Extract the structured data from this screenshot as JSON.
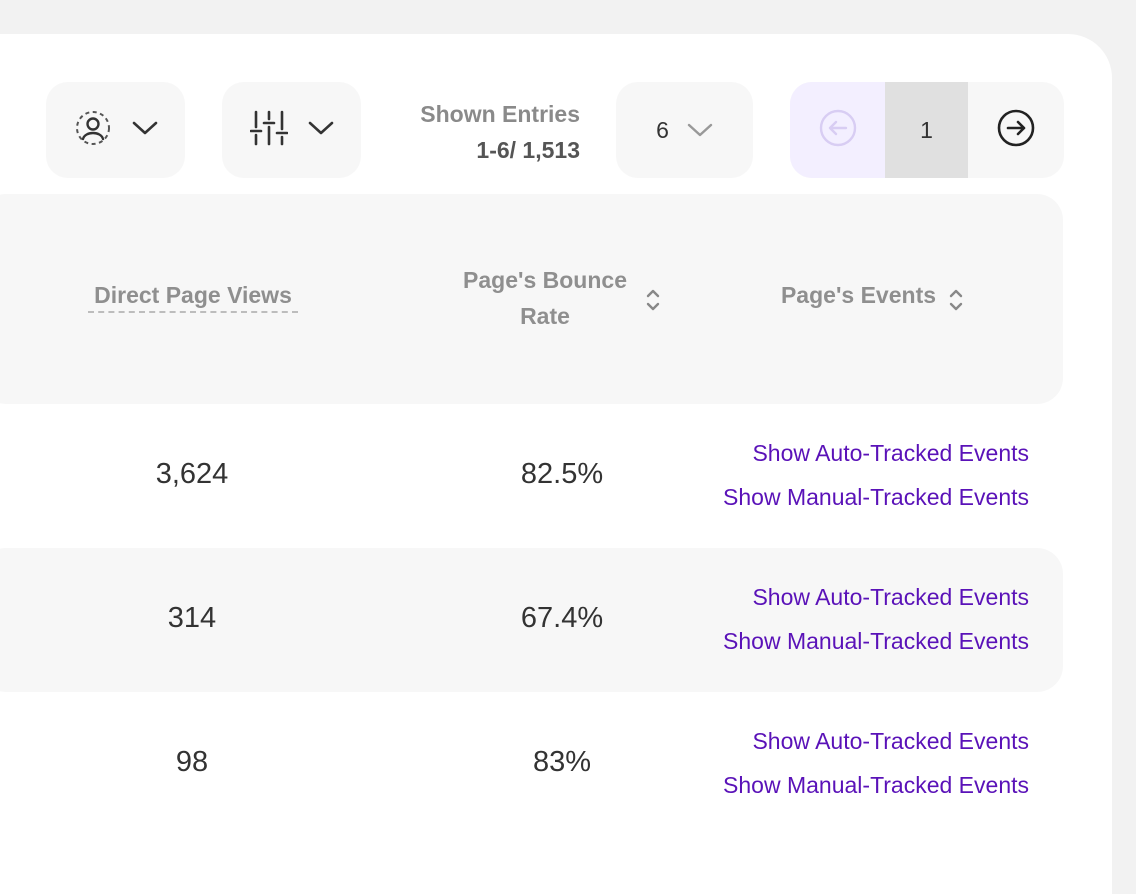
{
  "toolbar": {
    "user_filter_icon": "user-dashed-icon",
    "column_filter_icon": "sliders-icon",
    "entries_label": "Shown Entries",
    "entries_count": "1-6/ 1,513",
    "page_size": "6",
    "current_page": "1"
  },
  "table": {
    "headers": {
      "direct_views": "Direct Page Views",
      "bounce_rate_line1": "Page's Bounce",
      "bounce_rate_line2": "Rate",
      "events": "Page's Events"
    },
    "rows": [
      {
        "direct_views": "3,624",
        "bounce_rate": "82.5%",
        "auto_events": "Show Auto-Tracked Events",
        "manual_events": "Show Manual-Tracked Events"
      },
      {
        "direct_views": "314",
        "bounce_rate": "67.4%",
        "auto_events": "Show Auto-Tracked Events",
        "manual_events": "Show Manual-Tracked Events"
      },
      {
        "direct_views": "98",
        "bounce_rate": "83%",
        "auto_events": "Show Auto-Tracked Events",
        "manual_events": "Show Manual-Tracked Events"
      }
    ]
  },
  "colors": {
    "link": "#5a12b8",
    "header_bg": "#f7f7f7",
    "prev_bg": "#f3efff",
    "current_page_bg": "#e0e0e0"
  }
}
